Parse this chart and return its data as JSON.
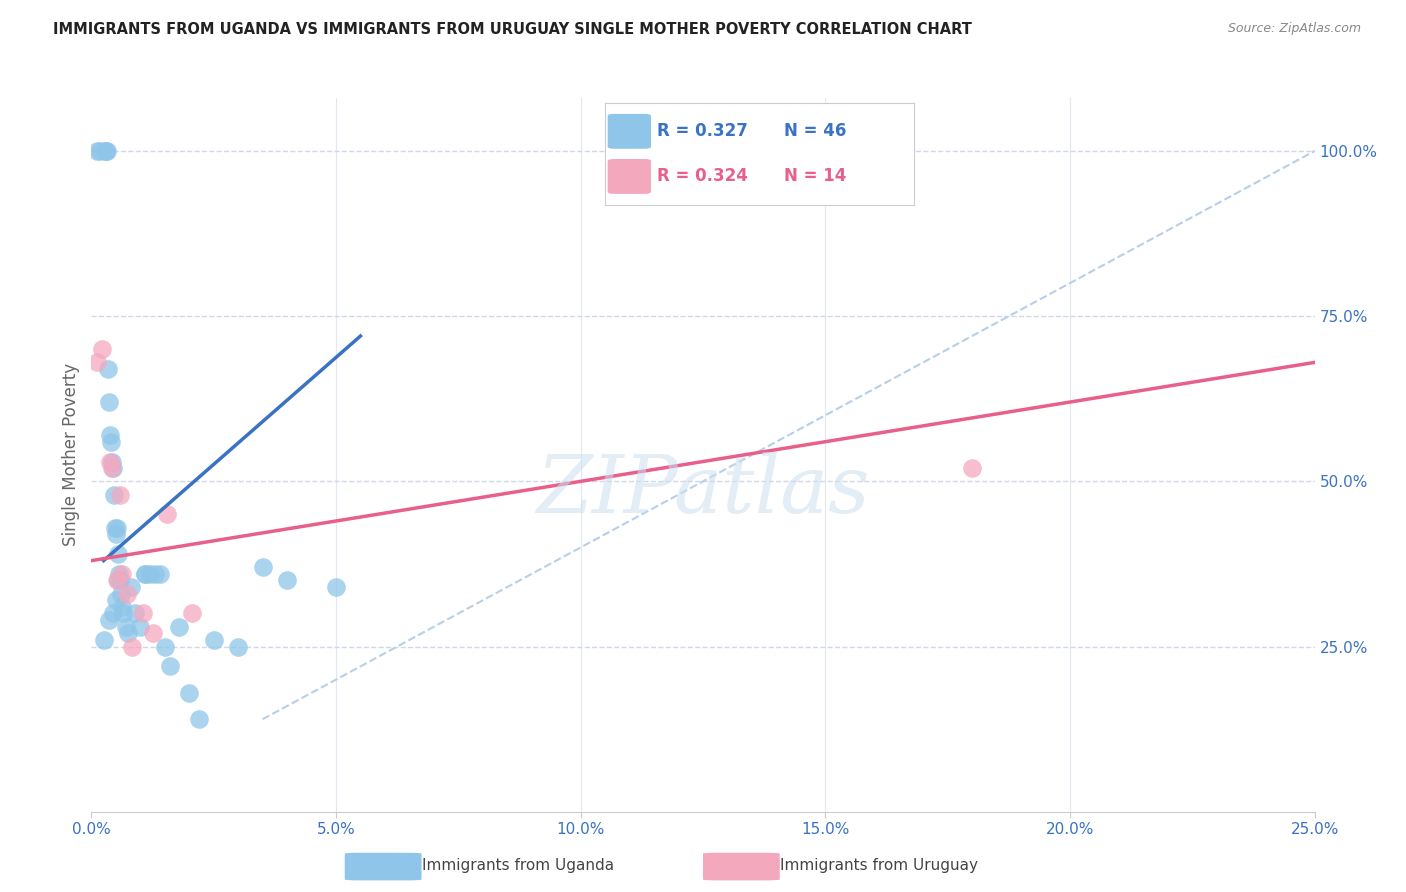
{
  "title": "IMMIGRANTS FROM UGANDA VS IMMIGRANTS FROM URUGUAY SINGLE MOTHER POVERTY CORRELATION CHART",
  "source": "Source: ZipAtlas.com",
  "ylabel": "Single Mother Poverty",
  "x_tick_labels": [
    "0.0%",
    "5.0%",
    "10.0%",
    "15.0%",
    "20.0%",
    "25.0%"
  ],
  "x_tick_values": [
    0.0,
    5.0,
    10.0,
    15.0,
    20.0,
    25.0
  ],
  "y_tick_labels": [
    "25.0%",
    "50.0%",
    "75.0%",
    "100.0%"
  ],
  "y_tick_values": [
    25.0,
    50.0,
    75.0,
    100.0
  ],
  "xlim": [
    0,
    25.0
  ],
  "ylim": [
    0,
    108.0
  ],
  "uganda_color": "#8ec5e8",
  "uruguay_color": "#f4a8be",
  "uganda_line_color": "#3a72c4",
  "uruguay_line_color": "#e8608a",
  "diag_line_color": "#b8cfe8",
  "background_color": "#ffffff",
  "grid_color": "#d0d8e8",
  "watermark": "ZIPatlas",
  "uganda_x": [
    0.12,
    0.18,
    0.28,
    0.3,
    0.32,
    0.33,
    0.35,
    0.38,
    0.4,
    0.42,
    0.44,
    0.46,
    0.48,
    0.5,
    0.52,
    0.54,
    0.56,
    0.58,
    0.6,
    0.62,
    0.64,
    0.7,
    0.75,
    0.8,
    0.9,
    1.0,
    1.1,
    1.2,
    1.3,
    1.4,
    1.5,
    1.6,
    1.8,
    2.0,
    2.2,
    2.5,
    3.0,
    3.5,
    4.0,
    5.0,
    0.55,
    0.5,
    0.45,
    0.35,
    0.25,
    1.1
  ],
  "uganda_y": [
    100.0,
    100.0,
    100.0,
    100.0,
    100.0,
    67.0,
    62.0,
    57.0,
    56.0,
    53.0,
    52.0,
    48.0,
    43.0,
    42.0,
    43.0,
    39.0,
    36.0,
    35.0,
    33.0,
    31.0,
    30.0,
    28.0,
    27.0,
    34.0,
    30.0,
    28.0,
    36.0,
    36.0,
    36.0,
    36.0,
    25.0,
    22.0,
    28.0,
    18.0,
    14.0,
    26.0,
    25.0,
    37.0,
    35.0,
    34.0,
    35.0,
    32.0,
    30.0,
    29.0,
    26.0,
    36.0
  ],
  "uruguay_x": [
    0.12,
    0.22,
    0.38,
    0.42,
    0.52,
    0.58,
    0.62,
    0.72,
    0.82,
    1.05,
    1.25,
    1.55,
    2.05,
    18.0
  ],
  "uruguay_y": [
    68.0,
    70.0,
    53.0,
    52.0,
    35.0,
    48.0,
    36.0,
    33.0,
    25.0,
    30.0,
    27.0,
    45.0,
    30.0,
    52.0
  ],
  "uganda_line_x": [
    0.25,
    5.5
  ],
  "uganda_line_y": [
    38.0,
    72.0
  ],
  "uruguay_line_x": [
    0.0,
    25.0
  ],
  "uruguay_line_y": [
    38.0,
    68.0
  ],
  "diag_line_x": [
    3.5,
    25.0
  ],
  "diag_line_y": [
    14.0,
    100.0
  ],
  "legend_R_uganda": "R = 0.327",
  "legend_N_uganda": "N = 46",
  "legend_R_uruguay": "R = 0.324",
  "legend_N_uruguay": "N = 14",
  "legend_label_uganda": "Immigrants from Uganda",
  "legend_label_uruguay": "Immigrants from Uruguay"
}
